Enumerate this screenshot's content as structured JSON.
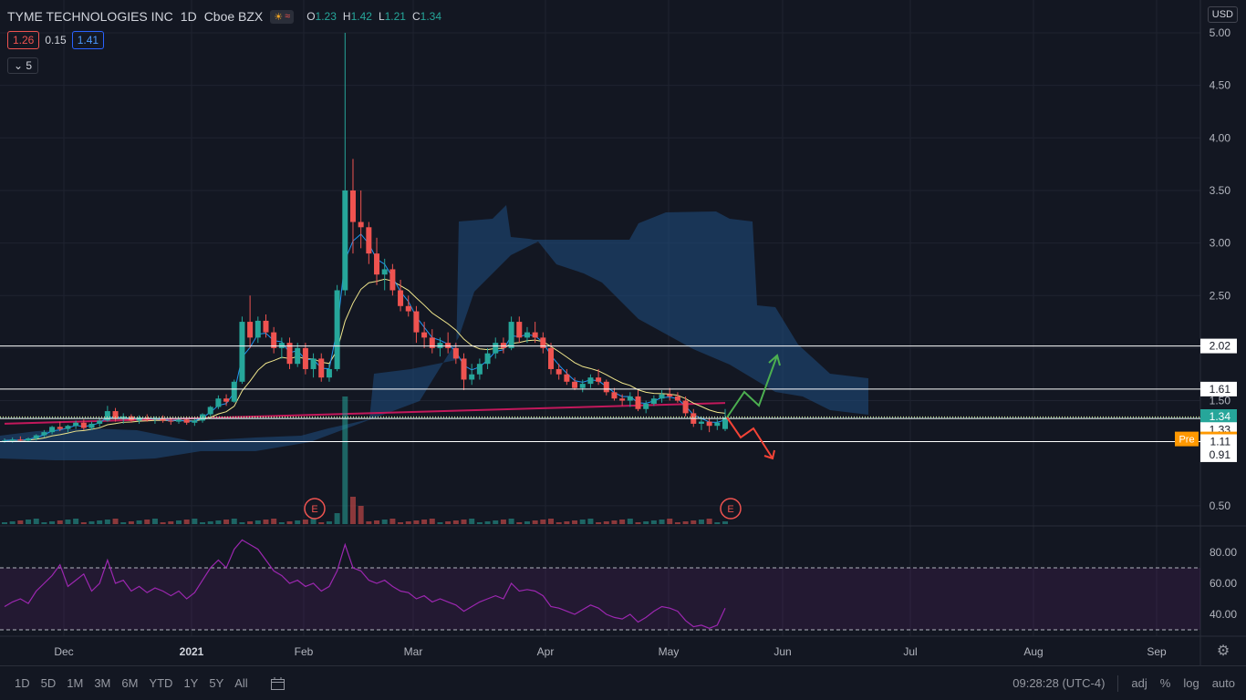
{
  "header": {
    "symbol_name": "TYME TECHNOLOGIES INC",
    "interval": "1D",
    "exchange": "Cboe BZX",
    "ohlc": {
      "o_label": "O",
      "o": "1.23",
      "h_label": "H",
      "h": "1.42",
      "l_label": "L",
      "l": "1.21",
      "c_label": "C",
      "c": "1.34"
    }
  },
  "indicators": {
    "v1": "1.26",
    "v2": "0.15",
    "v3": "1.41",
    "collapse_count": "5"
  },
  "currency": "USD",
  "colors": {
    "background": "#131722",
    "up": "#26a69a",
    "down": "#ef5350",
    "ema_fast": "#2196f3",
    "ema_slow": "#f0e68c",
    "sma_long": "#c2185b",
    "cloud": "#1e4a7a",
    "rsi": "#9c27b0",
    "arrow_up": "#4caf50",
    "arrow_down": "#f44336"
  },
  "price_axis": {
    "labels": [
      "5.00",
      "4.50",
      "4.00",
      "3.50",
      "3.00",
      "2.50",
      "2.00",
      "1.50",
      "0.50"
    ]
  },
  "levels": [
    {
      "label": "2.02",
      "value": 2.02
    },
    {
      "label": "1.61",
      "value": 1.61
    },
    {
      "label": "1.33",
      "value": 1.33
    },
    {
      "label": "1.11",
      "value": 1.11
    }
  ],
  "price_tags": {
    "last": "1.34",
    "plain": "1.33",
    "pre_label": "Pre",
    "pre_value": "1.33",
    "low": "0.91"
  },
  "rsi_axis": {
    "labels": [
      "80.00",
      "60.00",
      "40.00"
    ]
  },
  "time_axis": {
    "labels": [
      "Dec",
      "2021",
      "Feb",
      "Mar",
      "Apr",
      "May",
      "Jun",
      "Jul",
      "Aug",
      "Sep"
    ]
  },
  "earnings": {
    "label": "E"
  },
  "bottom_bar": {
    "ranges": [
      "1D",
      "5D",
      "1M",
      "3M",
      "6M",
      "YTD",
      "1Y",
      "5Y",
      "All"
    ],
    "time": "09:28:28 (UTC-4)",
    "options": [
      "adj",
      "%",
      "log",
      "auto"
    ]
  },
  "chart_data": {
    "type": "candlestick",
    "title": "TYME TECHNOLOGIES INC · 1D · Cboe BZX",
    "ylim": [
      0.35,
      5.05
    ],
    "candles_ohlc_approx": [
      [
        1.12,
        1.14,
        1.1,
        1.12
      ],
      [
        1.12,
        1.15,
        1.1,
        1.13
      ],
      [
        1.13,
        1.16,
        1.11,
        1.12
      ],
      [
        1.12,
        1.15,
        1.11,
        1.14
      ],
      [
        1.14,
        1.18,
        1.12,
        1.17
      ],
      [
        1.17,
        1.22,
        1.15,
        1.2
      ],
      [
        1.2,
        1.26,
        1.18,
        1.25
      ],
      [
        1.25,
        1.3,
        1.21,
        1.23
      ],
      [
        1.23,
        1.27,
        1.2,
        1.26
      ],
      [
        1.26,
        1.31,
        1.23,
        1.29
      ],
      [
        1.29,
        1.32,
        1.22,
        1.24
      ],
      [
        1.24,
        1.3,
        1.22,
        1.28
      ],
      [
        1.28,
        1.33,
        1.25,
        1.31
      ],
      [
        1.31,
        1.45,
        1.3,
        1.4
      ],
      [
        1.4,
        1.43,
        1.3,
        1.33
      ],
      [
        1.33,
        1.38,
        1.28,
        1.35
      ],
      [
        1.35,
        1.37,
        1.29,
        1.31
      ],
      [
        1.31,
        1.36,
        1.28,
        1.34
      ],
      [
        1.34,
        1.37,
        1.3,
        1.32
      ],
      [
        1.32,
        1.35,
        1.28,
        1.33
      ],
      [
        1.33,
        1.36,
        1.29,
        1.31
      ],
      [
        1.31,
        1.34,
        1.27,
        1.3
      ],
      [
        1.3,
        1.34,
        1.28,
        1.32
      ],
      [
        1.32,
        1.35,
        1.27,
        1.29
      ],
      [
        1.29,
        1.33,
        1.26,
        1.31
      ],
      [
        1.31,
        1.38,
        1.29,
        1.37
      ],
      [
        1.37,
        1.45,
        1.35,
        1.44
      ],
      [
        1.44,
        1.55,
        1.42,
        1.52
      ],
      [
        1.52,
        1.56,
        1.45,
        1.49
      ],
      [
        1.49,
        1.7,
        1.48,
        1.68
      ],
      [
        1.68,
        2.3,
        1.66,
        2.25
      ],
      [
        2.25,
        2.5,
        2.0,
        2.1
      ],
      [
        2.1,
        2.3,
        2.05,
        2.26
      ],
      [
        2.26,
        2.32,
        2.1,
        2.15
      ],
      [
        2.15,
        2.2,
        1.95,
        2.0
      ],
      [
        2.0,
        2.1,
        1.9,
        2.05
      ],
      [
        2.05,
        2.1,
        1.8,
        1.85
      ],
      [
        1.85,
        2.05,
        1.82,
        2.0
      ],
      [
        2.0,
        2.05,
        1.75,
        1.8
      ],
      [
        1.8,
        1.95,
        1.72,
        1.9
      ],
      [
        1.9,
        1.95,
        1.68,
        1.72
      ],
      [
        1.72,
        1.85,
        1.68,
        1.8
      ],
      [
        1.8,
        2.6,
        1.78,
        2.55
      ],
      [
        2.55,
        5.0,
        2.5,
        3.5
      ],
      [
        3.5,
        3.8,
        2.9,
        3.2
      ],
      [
        3.2,
        3.5,
        2.95,
        3.15
      ],
      [
        3.15,
        3.2,
        2.8,
        2.9
      ],
      [
        2.9,
        3.05,
        2.6,
        2.7
      ],
      [
        2.7,
        2.85,
        2.55,
        2.75
      ],
      [
        2.75,
        2.8,
        2.5,
        2.55
      ],
      [
        2.55,
        2.65,
        2.35,
        2.4
      ],
      [
        2.4,
        2.5,
        2.3,
        2.35
      ],
      [
        2.35,
        2.4,
        2.05,
        2.15
      ],
      [
        2.15,
        2.25,
        2.0,
        2.1
      ],
      [
        2.1,
        2.18,
        1.95,
        2.0
      ],
      [
        2.0,
        2.1,
        1.92,
        2.05
      ],
      [
        2.05,
        2.15,
        1.95,
        2.0
      ],
      [
        2.0,
        2.05,
        1.85,
        1.9
      ],
      [
        1.9,
        1.95,
        1.6,
        1.7
      ],
      [
        1.7,
        1.85,
        1.65,
        1.75
      ],
      [
        1.75,
        1.9,
        1.7,
        1.85
      ],
      [
        1.85,
        2.0,
        1.8,
        1.95
      ],
      [
        1.95,
        2.1,
        1.9,
        2.05
      ],
      [
        2.05,
        2.1,
        1.95,
        2.0
      ],
      [
        2.0,
        2.3,
        1.98,
        2.25
      ],
      [
        2.25,
        2.3,
        2.05,
        2.1
      ],
      [
        2.1,
        2.2,
        2.05,
        2.15
      ],
      [
        2.15,
        2.25,
        2.05,
        2.1
      ],
      [
        2.1,
        2.15,
        1.95,
        2.0
      ],
      [
        2.0,
        2.05,
        1.75,
        1.8
      ],
      [
        1.8,
        1.85,
        1.7,
        1.75
      ],
      [
        1.75,
        1.8,
        1.65,
        1.68
      ],
      [
        1.68,
        1.72,
        1.6,
        1.62
      ],
      [
        1.62,
        1.7,
        1.58,
        1.66
      ],
      [
        1.66,
        1.75,
        1.62,
        1.72
      ],
      [
        1.72,
        1.8,
        1.65,
        1.68
      ],
      [
        1.68,
        1.7,
        1.55,
        1.58
      ],
      [
        1.58,
        1.62,
        1.5,
        1.52
      ],
      [
        1.52,
        1.56,
        1.45,
        1.5
      ],
      [
        1.5,
        1.58,
        1.44,
        1.54
      ],
      [
        1.54,
        1.6,
        1.4,
        1.42
      ],
      [
        1.42,
        1.5,
        1.38,
        1.47
      ],
      [
        1.47,
        1.55,
        1.45,
        1.52
      ],
      [
        1.52,
        1.6,
        1.48,
        1.56
      ],
      [
        1.56,
        1.62,
        1.5,
        1.54
      ],
      [
        1.54,
        1.58,
        1.48,
        1.5
      ],
      [
        1.5,
        1.54,
        1.35,
        1.38
      ],
      [
        1.38,
        1.42,
        1.25,
        1.28
      ],
      [
        1.28,
        1.35,
        1.22,
        1.3
      ],
      [
        1.3,
        1.33,
        1.2,
        1.26
      ],
      [
        1.26,
        1.32,
        1.22,
        1.29
      ],
      [
        1.23,
        1.42,
        1.21,
        1.34
      ]
    ],
    "rsi_ylim": [
      25,
      95
    ],
    "rsi_series": [
      45,
      48,
      50,
      47,
      55,
      60,
      65,
      72,
      58,
      62,
      66,
      55,
      60,
      75,
      60,
      62,
      55,
      58,
      54,
      57,
      55,
      52,
      55,
      50,
      54,
      62,
      70,
      75,
      70,
      82,
      88,
      85,
      82,
      75,
      68,
      65,
      60,
      62,
      58,
      60,
      55,
      58,
      68,
      85,
      70,
      68,
      62,
      60,
      62,
      58,
      55,
      54,
      50,
      52,
      48,
      50,
      48,
      46,
      42,
      45,
      48,
      50,
      52,
      50,
      60,
      55,
      56,
      55,
      52,
      45,
      44,
      42,
      40,
      43,
      46,
      44,
      40,
      38,
      37,
      40,
      35,
      38,
      42,
      45,
      44,
      42,
      36,
      32,
      33,
      31,
      33,
      44
    ]
  }
}
